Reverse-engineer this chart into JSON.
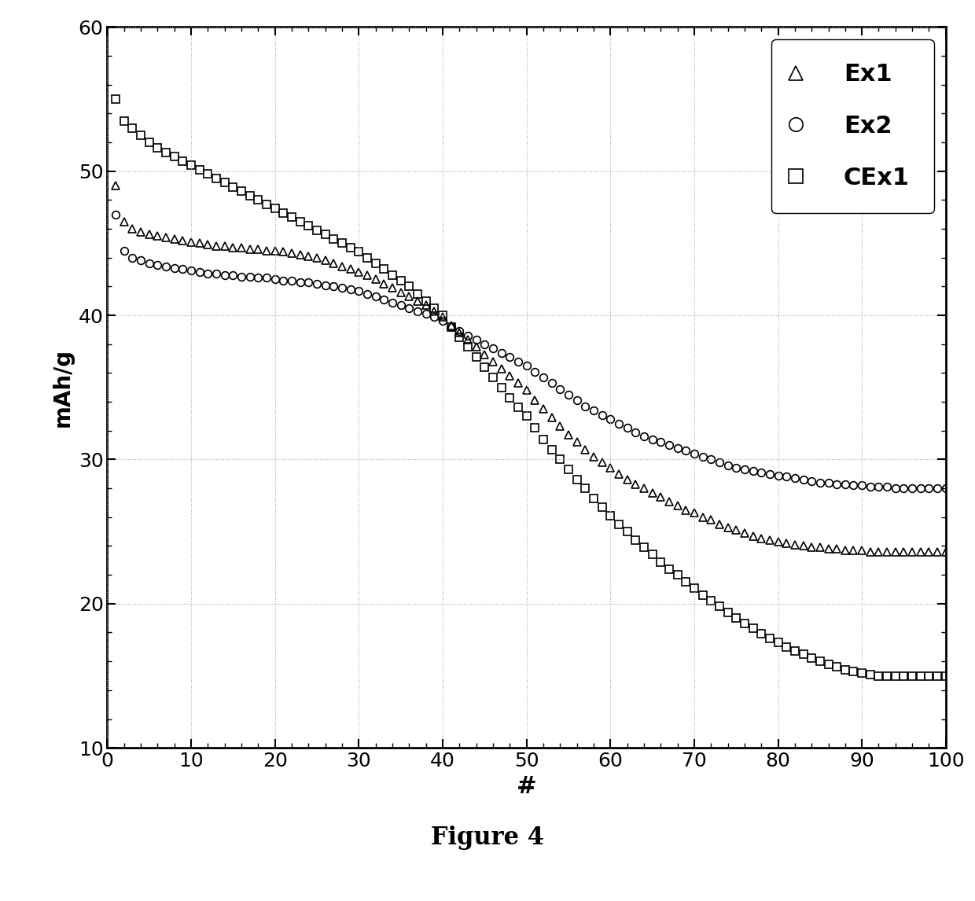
{
  "title": "Figure 4",
  "xlabel": "#",
  "ylabel": "mAh/g",
  "xlim": [
    0,
    100
  ],
  "ylim": [
    10,
    60
  ],
  "xticks": [
    0,
    10,
    20,
    30,
    40,
    50,
    60,
    70,
    80,
    90,
    100
  ],
  "yticks": [
    10,
    20,
    30,
    40,
    50,
    60
  ],
  "background_color": "#ffffff",
  "series": [
    {
      "label": "Ex1",
      "marker": "^",
      "color": "#000000",
      "x": [
        1,
        2,
        3,
        4,
        5,
        6,
        7,
        8,
        9,
        10,
        11,
        12,
        13,
        14,
        15,
        16,
        17,
        18,
        19,
        20,
        21,
        22,
        23,
        24,
        25,
        26,
        27,
        28,
        29,
        30,
        31,
        32,
        33,
        34,
        35,
        36,
        37,
        38,
        39,
        40,
        41,
        42,
        43,
        44,
        45,
        46,
        47,
        48,
        49,
        50,
        51,
        52,
        53,
        54,
        55,
        56,
        57,
        58,
        59,
        60,
        61,
        62,
        63,
        64,
        65,
        66,
        67,
        68,
        69,
        70,
        71,
        72,
        73,
        74,
        75,
        76,
        77,
        78,
        79,
        80,
        81,
        82,
        83,
        84,
        85,
        86,
        87,
        88,
        89,
        90,
        91,
        92,
        93,
        94,
        95,
        96,
        97,
        98,
        99,
        100
      ],
      "y": [
        49.0,
        46.5,
        46.0,
        45.8,
        45.6,
        45.5,
        45.4,
        45.3,
        45.2,
        45.1,
        45.0,
        44.9,
        44.8,
        44.8,
        44.7,
        44.7,
        44.6,
        44.6,
        44.5,
        44.5,
        44.4,
        44.3,
        44.2,
        44.1,
        44.0,
        43.8,
        43.6,
        43.4,
        43.2,
        43.0,
        42.8,
        42.5,
        42.2,
        41.9,
        41.6,
        41.3,
        41.0,
        40.7,
        40.3,
        39.9,
        39.3,
        38.8,
        38.3,
        37.8,
        37.3,
        36.8,
        36.3,
        35.8,
        35.3,
        34.8,
        34.1,
        33.5,
        32.9,
        32.3,
        31.7,
        31.2,
        30.7,
        30.2,
        29.8,
        29.4,
        29.0,
        28.6,
        28.3,
        28.0,
        27.7,
        27.4,
        27.1,
        26.8,
        26.5,
        26.3,
        26.0,
        25.8,
        25.5,
        25.3,
        25.1,
        24.9,
        24.7,
        24.5,
        24.4,
        24.3,
        24.2,
        24.1,
        24.0,
        23.9,
        23.9,
        23.8,
        23.8,
        23.7,
        23.7,
        23.7,
        23.6,
        23.6,
        23.6,
        23.6,
        23.6,
        23.6,
        23.6,
        23.6,
        23.6,
        23.6
      ]
    },
    {
      "label": "Ex2",
      "marker": "o",
      "color": "#000000",
      "x": [
        1,
        2,
        3,
        4,
        5,
        6,
        7,
        8,
        9,
        10,
        11,
        12,
        13,
        14,
        15,
        16,
        17,
        18,
        19,
        20,
        21,
        22,
        23,
        24,
        25,
        26,
        27,
        28,
        29,
        30,
        31,
        32,
        33,
        34,
        35,
        36,
        37,
        38,
        39,
        40,
        41,
        42,
        43,
        44,
        45,
        46,
        47,
        48,
        49,
        50,
        51,
        52,
        53,
        54,
        55,
        56,
        57,
        58,
        59,
        60,
        61,
        62,
        63,
        64,
        65,
        66,
        67,
        68,
        69,
        70,
        71,
        72,
        73,
        74,
        75,
        76,
        77,
        78,
        79,
        80,
        81,
        82,
        83,
        84,
        85,
        86,
        87,
        88,
        89,
        90,
        91,
        92,
        93,
        94,
        95,
        96,
        97,
        98,
        99,
        100
      ],
      "y": [
        47.0,
        44.5,
        44.0,
        43.8,
        43.6,
        43.5,
        43.4,
        43.3,
        43.2,
        43.1,
        43.0,
        42.9,
        42.9,
        42.8,
        42.8,
        42.7,
        42.7,
        42.6,
        42.6,
        42.5,
        42.4,
        42.4,
        42.3,
        42.3,
        42.2,
        42.1,
        42.0,
        41.9,
        41.8,
        41.7,
        41.5,
        41.3,
        41.1,
        40.9,
        40.7,
        40.5,
        40.3,
        40.1,
        39.9,
        39.6,
        39.2,
        38.9,
        38.6,
        38.3,
        38.0,
        37.7,
        37.4,
        37.1,
        36.8,
        36.5,
        36.1,
        35.7,
        35.3,
        34.9,
        34.5,
        34.1,
        33.7,
        33.4,
        33.1,
        32.8,
        32.5,
        32.2,
        31.9,
        31.6,
        31.4,
        31.2,
        31.0,
        30.8,
        30.6,
        30.4,
        30.2,
        30.0,
        29.8,
        29.6,
        29.4,
        29.3,
        29.2,
        29.1,
        29.0,
        28.9,
        28.8,
        28.7,
        28.6,
        28.5,
        28.4,
        28.4,
        28.3,
        28.3,
        28.2,
        28.2,
        28.1,
        28.1,
        28.1,
        28.0,
        28.0,
        28.0,
        28.0,
        28.0,
        28.0,
        28.0
      ]
    },
    {
      "label": "CEx1",
      "marker": "s",
      "color": "#000000",
      "x": [
        1,
        2,
        3,
        4,
        5,
        6,
        7,
        8,
        9,
        10,
        11,
        12,
        13,
        14,
        15,
        16,
        17,
        18,
        19,
        20,
        21,
        22,
        23,
        24,
        25,
        26,
        27,
        28,
        29,
        30,
        31,
        32,
        33,
        34,
        35,
        36,
        37,
        38,
        39,
        40,
        41,
        42,
        43,
        44,
        45,
        46,
        47,
        48,
        49,
        50,
        51,
        52,
        53,
        54,
        55,
        56,
        57,
        58,
        59,
        60,
        61,
        62,
        63,
        64,
        65,
        66,
        67,
        68,
        69,
        70,
        71,
        72,
        73,
        74,
        75,
        76,
        77,
        78,
        79,
        80,
        81,
        82,
        83,
        84,
        85,
        86,
        87,
        88,
        89,
        90,
        91,
        92,
        93,
        94,
        95,
        96,
        97,
        98,
        99,
        100
      ],
      "y": [
        55.0,
        53.5,
        53.0,
        52.5,
        52.0,
        51.6,
        51.3,
        51.0,
        50.7,
        50.4,
        50.1,
        49.8,
        49.5,
        49.2,
        48.9,
        48.6,
        48.3,
        48.0,
        47.7,
        47.4,
        47.1,
        46.8,
        46.5,
        46.2,
        45.9,
        45.6,
        45.3,
        45.0,
        44.7,
        44.4,
        44.0,
        43.6,
        43.2,
        42.8,
        42.4,
        42.0,
        41.5,
        41.0,
        40.5,
        40.0,
        39.2,
        38.5,
        37.8,
        37.1,
        36.4,
        35.7,
        35.0,
        34.3,
        33.6,
        33.0,
        32.2,
        31.4,
        30.7,
        30.0,
        29.3,
        28.6,
        28.0,
        27.3,
        26.7,
        26.1,
        25.5,
        25.0,
        24.4,
        23.9,
        23.4,
        22.9,
        22.4,
        22.0,
        21.5,
        21.1,
        20.6,
        20.2,
        19.8,
        19.4,
        19.0,
        18.6,
        18.3,
        17.9,
        17.6,
        17.3,
        17.0,
        16.7,
        16.5,
        16.2,
        16.0,
        15.8,
        15.6,
        15.4,
        15.3,
        15.2,
        15.1,
        15.0,
        15.0,
        15.0,
        15.0,
        15.0,
        15.0,
        15.0,
        15.0,
        15.0
      ]
    }
  ],
  "legend_loc": "upper right",
  "marker_size": 7,
  "linewidth": 0,
  "figure_width": 12.4,
  "figure_height": 11.46,
  "dpi": 100
}
